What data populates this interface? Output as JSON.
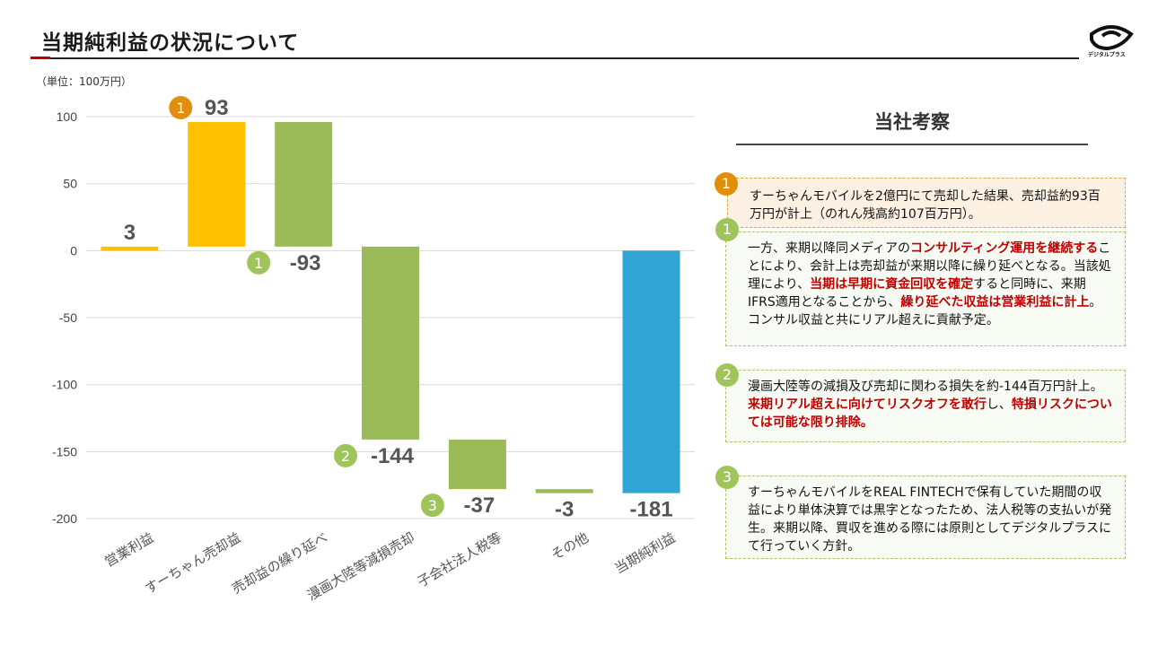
{
  "header": {
    "title": "当期純利益の状況について",
    "logo_text": "デジタルプラス"
  },
  "unit_label": "（単位：100万円）",
  "chart_data": {
    "type": "waterfall",
    "ylim": [
      -200,
      100
    ],
    "yticks": [
      100,
      50,
      0,
      -50,
      -100,
      -150,
      -200
    ],
    "categories": [
      "営業利益",
      "すーちゃん売却益",
      "売却益の繰り延べ",
      "漫画大陸等減損売却",
      "子会社法人税等",
      "その他",
      "当期純利益"
    ],
    "values": [
      3,
      93,
      -93,
      -144,
      -37,
      -3,
      -181
    ],
    "bar_colors": [
      "#ffc000",
      "#ffc000",
      "#9bbb59",
      "#9bbb59",
      "#9bbb59",
      "#9bbb59",
      "#31a5d3"
    ],
    "labels": [
      "3",
      "93",
      "-93",
      "-144",
      "-37",
      "-3",
      "-181"
    ],
    "badges": [
      "",
      "1",
      "1",
      "2",
      "3",
      "",
      ""
    ],
    "badge_colors": [
      "",
      "#e08e0b",
      "#9fc55a",
      "#9fc55a",
      "#9fc55a",
      "",
      ""
    ]
  },
  "panel": {
    "title": "当社考察",
    "box0": {
      "badge": "1",
      "text": "すーちゃんモバイルを2億円にて売却した結果、売却益約93百万円が計上（のれん残高約107百万円）。"
    },
    "box1": {
      "badge": "1",
      "t1": "一方、来期以降同メディアの",
      "r1": "コンサルティング運用を継続する",
      "t2": "ことにより、会計上は売却益が来期以降に繰り延べとなる。当該処理により、",
      "r2": "当期は早期に資金回収を確定",
      "t3": "すると同時に、来期IFRS適用となることから、",
      "r3": "繰り延べた収益は営業利益に計上",
      "t4": "。コンサル収益と共にリアル超えに貢献予定。"
    },
    "box2": {
      "badge": "2",
      "t1": "漫画大陸等の減損及び売却に関わる損失を約-144百万円計上。",
      "r1": "来期リアル超えに向けてリスクオフを敢行",
      "t2": "し、",
      "r2": "特損リスクについては可能な限り排除。"
    },
    "box3": {
      "badge": "3",
      "text": "すーちゃんモバイルをREAL FINTECHで保有していた期間の収益により単体決算では黒字となったため、法人税等の支払いが発生。来期以降、買収を進める際には原則としてデジタルプラスにて行っていく方針。"
    }
  }
}
